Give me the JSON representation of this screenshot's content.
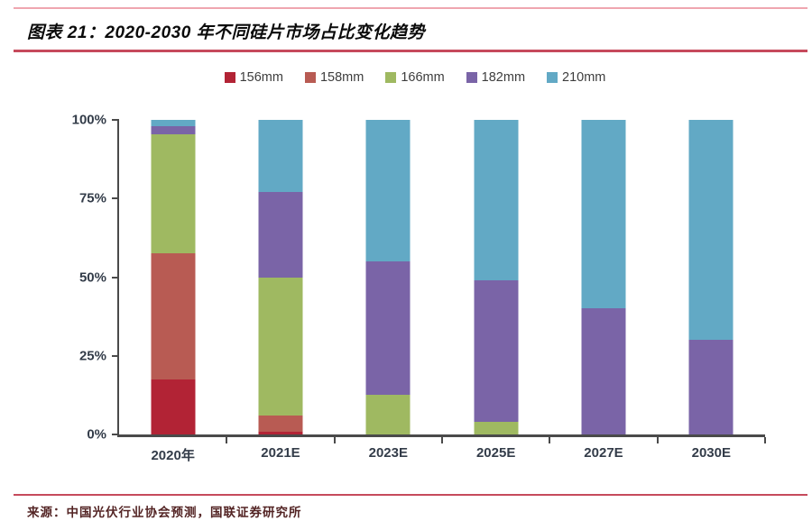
{
  "title": {
    "text": "图表 21：2020-2030 年不同硅片市场占比变化趋势"
  },
  "footer": {
    "source": "来源：中国光伏行业协会预测，国联证券研究所"
  },
  "colors": {
    "top_rule": "#efa6b0",
    "title_rule": "#c64a5c",
    "footer_rule": "#c64a5c",
    "axis": "#4a4a4a",
    "axis_label": "#333c49",
    "title_text": "#0a0a0a",
    "footer_text": "#532424"
  },
  "chart_data": {
    "type": "bar",
    "stacked": true,
    "unit": "%",
    "title": "图表 21：2020-2030 年不同硅片市场占比变化趋势",
    "xlabel": "",
    "ylabel": "",
    "ylim": [
      0,
      100
    ],
    "grid": false,
    "legend_position": "top",
    "y_ticks": [
      "0%",
      "25%",
      "50%",
      "75%",
      "100%"
    ],
    "categories": [
      "2020年",
      "2021E",
      "2023E",
      "2025E",
      "2027E",
      "2030E"
    ],
    "series": [
      {
        "name": "156mm",
        "color": "#b22335",
        "values": [
          17.5,
          1,
          0,
          0,
          0,
          0
        ]
      },
      {
        "name": "158mm",
        "color": "#b85b53",
        "values": [
          40,
          5,
          0,
          0,
          0,
          0
        ]
      },
      {
        "name": "166mm",
        "color": "#9fb961",
        "values": [
          38,
          44,
          12.5,
          4,
          0,
          0
        ]
      },
      {
        "name": "182mm",
        "color": "#7a64a7",
        "values": [
          2.5,
          27,
          42.5,
          45,
          40,
          30
        ]
      },
      {
        "name": "210mm",
        "color": "#62a9c5",
        "values": [
          2,
          23,
          45,
          51,
          60,
          70
        ]
      }
    ]
  }
}
